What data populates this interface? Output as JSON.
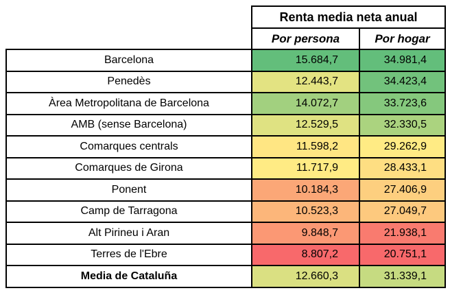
{
  "table": {
    "title": "Renta media neta anual",
    "columns": [
      "Por persona",
      "Por hogar"
    ],
    "rows": [
      {
        "label": "Barcelona",
        "bold": false,
        "persona": "15.684,7",
        "persona_bg": "#63BE7B",
        "hogar": "34.981,4",
        "hogar_bg": "#63BE7B"
      },
      {
        "label": "Penedès",
        "bold": false,
        "persona": "12.443,7",
        "persona_bg": "#E3E382",
        "hogar": "34.423,4",
        "hogar_bg": "#72C27C"
      },
      {
        "label": "Àrea Metropolitana de Barcelona",
        "bold": false,
        "persona": "14.072,7",
        "persona_bg": "#A2D07F",
        "hogar": "33.723,6",
        "hogar_bg": "#85C87D"
      },
      {
        "label": "AMB (sense Barcelona)",
        "bold": false,
        "persona": "12.529,5",
        "persona_bg": "#DFE282",
        "hogar": "32.330,5",
        "hogar_bg": "#ABD37F"
      },
      {
        "label": "Comarques centrals",
        "bold": false,
        "persona": "11.598,2",
        "persona_bg": "#FFE683",
        "hogar": "29.262,9",
        "hogar_bg": "#FFEB84"
      },
      {
        "label": "Comarques de Girona",
        "bold": false,
        "persona": "11.717,9",
        "persona_bg": "#FFEB84",
        "hogar": "28.433,1",
        "hogar_bg": "#FEDE82"
      },
      {
        "label": "Ponent",
        "bold": false,
        "persona": "10.184,3",
        "persona_bg": "#FBA777",
        "hogar": "27.406,9",
        "hogar_bg": "#FDCF7F"
      },
      {
        "label": "Camp de Tarragona",
        "bold": false,
        "persona": "10.523,3",
        "persona_bg": "#FCB67A",
        "hogar": "27.049,7",
        "hogar_bg": "#FDC97E"
      },
      {
        "label": "Alt Pirineu i Aran",
        "bold": false,
        "persona": "9.848,7",
        "persona_bg": "#FB9874",
        "hogar": "21.938,1",
        "hogar_bg": "#F97B6F"
      },
      {
        "label": "Terres de l'Ebre",
        "bold": false,
        "persona": "8.807,2",
        "persona_bg": "#F8696B",
        "hogar": "20.751,1",
        "hogar_bg": "#F8696B"
      },
      {
        "label": "Media de Cataluña",
        "bold": true,
        "persona": "12.660,3",
        "persona_bg": "#DAE082",
        "hogar": "31.339,1",
        "hogar_bg": "#C6DB81"
      }
    ]
  },
  "chart_data": {
    "type": "table",
    "title": "Renta media neta anual",
    "columns": [
      "Por persona",
      "Por hogar"
    ],
    "categories": [
      "Barcelona",
      "Penedès",
      "Àrea Metropolitana de Barcelona",
      "AMB (sense Barcelona)",
      "Comarques centrals",
      "Comarques de Girona",
      "Ponent",
      "Camp de Tarragona",
      "Alt Pirineu i Aran",
      "Terres de l'Ebre",
      "Media de Cataluña"
    ],
    "series": [
      {
        "name": "Por persona",
        "values": [
          15684.7,
          12443.7,
          14072.7,
          12529.5,
          11598.2,
          11717.9,
          10184.3,
          10523.3,
          9848.7,
          8807.2,
          12660.3
        ]
      },
      {
        "name": "Por hogar",
        "values": [
          34981.4,
          34423.4,
          33723.6,
          32330.5,
          29262.9,
          28433.1,
          27406.9,
          27049.7,
          21938.1,
          20751.1,
          31339.1
        ]
      }
    ],
    "color_scale": {
      "min_color": "#F8696B",
      "mid_color": "#FFEB84",
      "max_color": "#63BE7B",
      "applied_per_column": true
    }
  }
}
